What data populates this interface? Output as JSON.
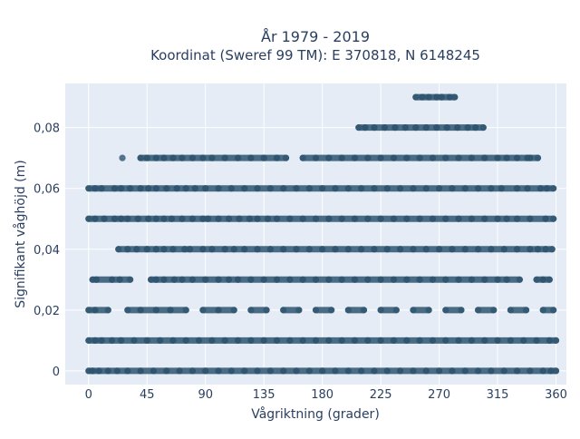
{
  "chart_data": {
    "type": "scatter",
    "title": "År 1979 - 2019",
    "subtitle": "Koordinat (Sweref 99 TM): E 370818, N 6148245",
    "xlabel": "Vågriktning (grader)",
    "ylabel": "Signifikant våghöjd (m)",
    "xlim": [
      -18,
      368
    ],
    "ylim": [
      -0.0045,
      0.0945
    ],
    "x_ticks": [
      0,
      45,
      90,
      135,
      180,
      225,
      270,
      315,
      360
    ],
    "x_tick_labels": [
      "0",
      "45",
      "90",
      "135",
      "180",
      "225",
      "270",
      "315",
      "360"
    ],
    "y_ticks": [
      0,
      0.02,
      0.04,
      0.06,
      0.08
    ],
    "y_tick_labels": [
      "0",
      "0,02",
      "0,04",
      "0,06",
      "0,08"
    ],
    "grid": true,
    "legend": false,
    "marker_color": "#2e5570",
    "plot_background": "#e5ecf6",
    "series": [
      {
        "levels": [
          {
            "y": 0,
            "x": [
              0,
              3,
              8,
              15,
              22,
              30,
              40,
              50,
              60,
              70,
              80,
              90,
              100,
              110,
              120,
              130,
              140,
              150,
              160,
              170,
              180,
              190,
              200,
              210,
              220,
              230,
              240,
              250,
              260,
              270,
              280,
              290,
              300,
              310,
              320,
              330,
              340,
              350,
              356,
              360
            ]
          },
          {
            "y": 0.01,
            "x": [
              0,
              5,
              10,
              18,
              25,
              35,
              45,
              55,
              65,
              75,
              85,
              95,
              105,
              115,
              125,
              135,
              145,
              155,
              165,
              175,
              185,
              195,
              205,
              215,
              225,
              235,
              245,
              255,
              265,
              275,
              285,
              295,
              305,
              315,
              325,
              335,
              345,
              355,
              360
            ]
          },
          {
            "y": 0.02,
            "x": [
              0,
              5,
              15,
              30,
              40,
              52,
              63,
              75,
              88,
              100,
              112,
              125,
              137,
              150,
              162,
              175,
              187,
              200,
              212,
              225,
              237,
              250,
              262,
              275,
              287,
              300,
              312,
              325,
              337,
              350,
              358
            ]
          },
          {
            "y": 0.03,
            "x": [
              3,
              6,
              18,
              24,
              32,
              48,
              52,
              58,
              66,
              72,
              80,
              90,
              100,
              108,
              115,
              125,
              135,
              145,
              155,
              165,
              175,
              185,
              195,
              205,
              215,
              225,
              235,
              245,
              255,
              265,
              275,
              285,
              295,
              305,
              315,
              322,
              332,
              345,
              350,
              355
            ]
          },
          {
            "y": 0.04,
            "x": [
              23,
              30,
              37,
              45,
              52,
              58,
              65,
              74,
              78,
              88,
              95,
              105,
              112,
              120,
              130,
              140,
              150,
              160,
              170,
              180,
              190,
              200,
              210,
              220,
              230,
              240,
              250,
              260,
              270,
              280,
              290,
              300,
              310,
              320,
              330,
              340,
              346,
              352,
              357
            ]
          },
          {
            "y": 0.05,
            "x": [
              0,
              5,
              12,
              20,
              25,
              30,
              38,
              46,
              52,
              58,
              64,
              72,
              80,
              88,
              92,
              100,
              108,
              116,
              124,
              130,
              138,
              145,
              155,
              165,
              175,
              185,
              195,
              205,
              215,
              225,
              235,
              245,
              255,
              265,
              275,
              285,
              295,
              305,
              315,
              322,
              330,
              340,
              352,
              358
            ]
          },
          {
            "y": 0.06,
            "x": [
              0,
              5,
              10,
              20,
              25,
              32,
              40,
              46,
              52,
              60,
              68,
              75,
              82,
              90,
              100,
              110,
              120,
              130,
              140,
              150,
              160,
              170,
              180,
              190,
              200,
              210,
              220,
              230,
              240,
              250,
              260,
              270,
              280,
              290,
              300,
              310,
              318,
              330,
              338,
              348,
              353,
              358
            ]
          },
          {
            "y": 0.07,
            "x": [
              26,
              40,
              45,
              52,
              58,
              65,
              72,
              80,
              88,
              95,
              105,
              115,
              125,
              135,
              145,
              152,
              165,
              175,
              185,
              195,
              205,
              215,
              225,
              235,
              245,
              255,
              265,
              275,
              285,
              295,
              305,
              315,
              322,
              330,
              338,
              340,
              346
            ]
          },
          {
            "y": 0.08,
            "x": [
              208,
              213,
              220,
              228,
              236,
              244,
              252,
              260,
              268,
              276,
              284,
              292,
              298,
              304
            ]
          },
          {
            "y": 0.09,
            "x": [
              252,
              257,
              262,
              268,
              272,
              278,
              282
            ]
          }
        ]
      }
    ]
  }
}
